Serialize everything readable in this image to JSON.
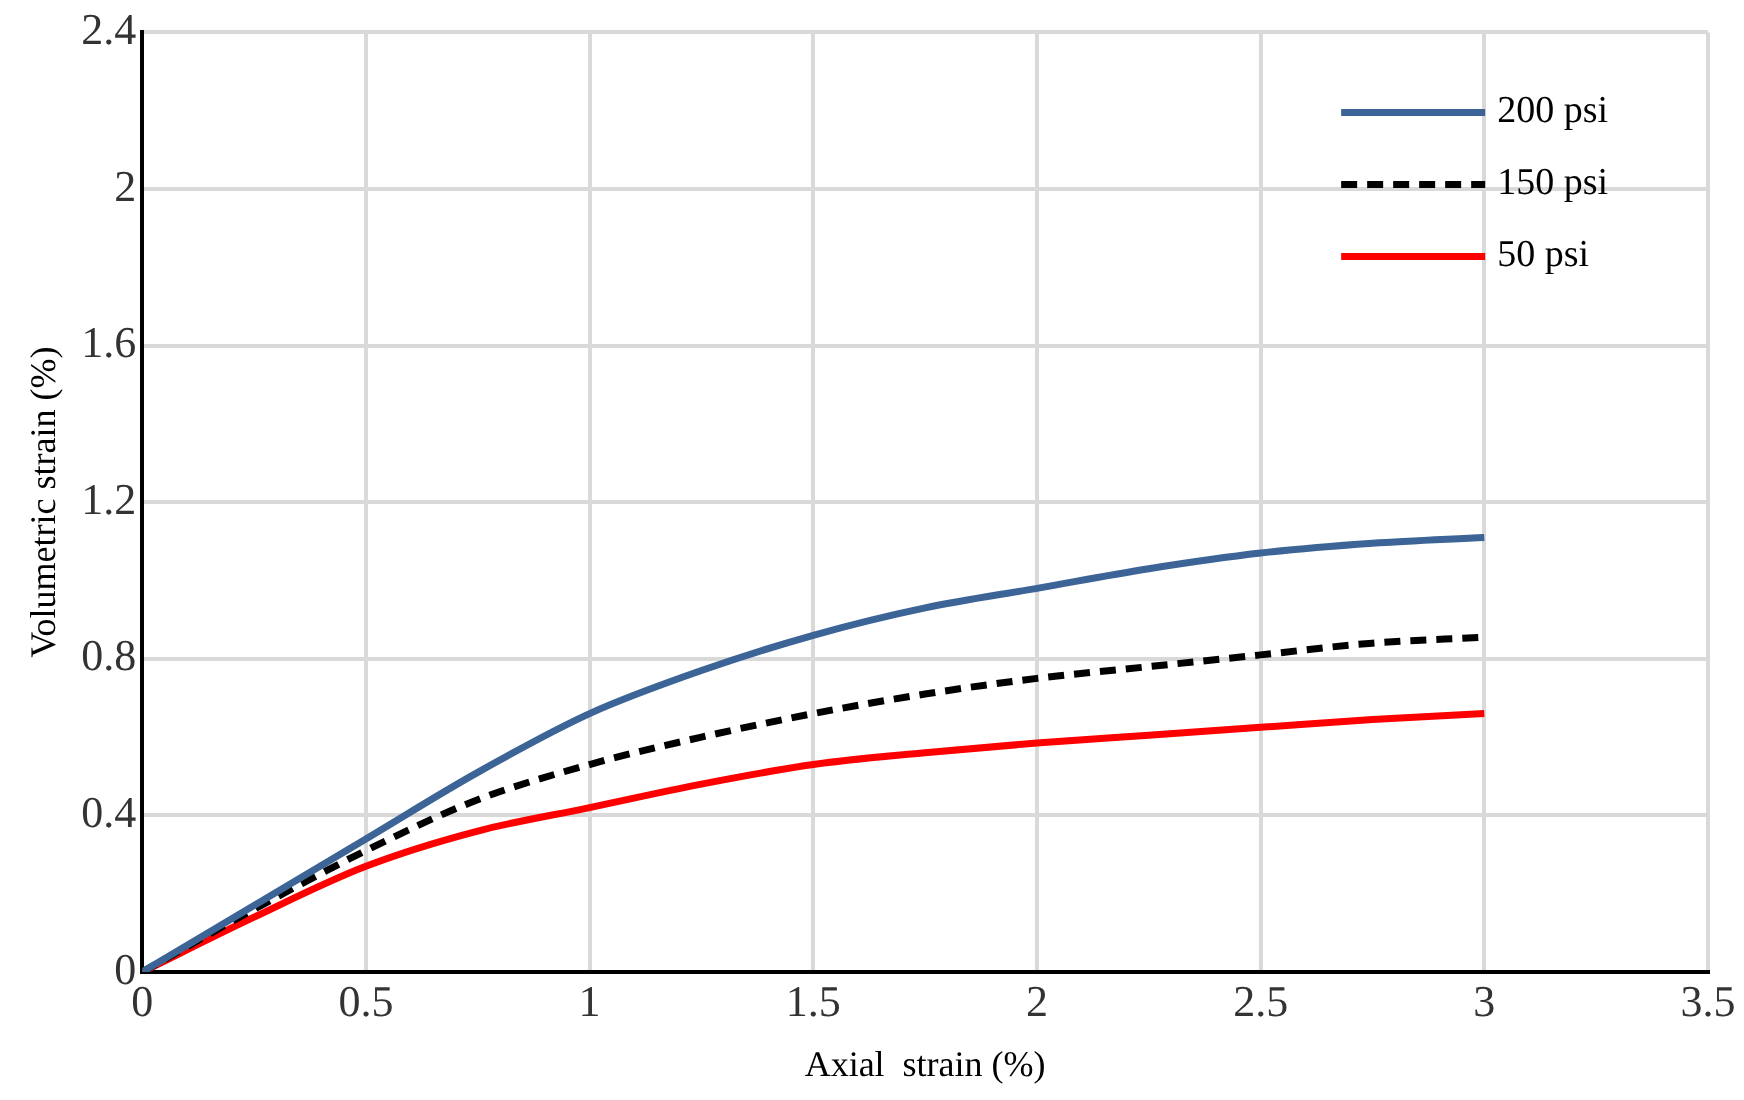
{
  "chart_data": {
    "type": "line",
    "xlabel": "Axial  strain (%)",
    "ylabel": "Volumetric strain (%)",
    "x": [
      0,
      0.25,
      0.5,
      0.75,
      1,
      1.25,
      1.5,
      1.75,
      2,
      2.25,
      2.5,
      2.75,
      3
    ],
    "series": [
      {
        "name": "200 psi",
        "color": "#3c6496",
        "line_style": "solid",
        "values": [
          0,
          0.17,
          0.34,
          0.51,
          0.66,
          0.77,
          0.86,
          0.93,
          0.98,
          1.03,
          1.07,
          1.095,
          1.11
        ]
      },
      {
        "name": "150 psi",
        "color": "#000000",
        "line_style": "dashed",
        "values": [
          0,
          0.16,
          0.31,
          0.44,
          0.53,
          0.6,
          0.66,
          0.71,
          0.75,
          0.78,
          0.81,
          0.84,
          0.855
        ]
      },
      {
        "name": "50 psi",
        "color": "#ff0000",
        "line_style": "solid",
        "values": [
          0,
          0.14,
          0.27,
          0.36,
          0.42,
          0.48,
          0.53,
          0.56,
          0.585,
          0.605,
          0.625,
          0.645,
          0.66
        ]
      }
    ],
    "xlim": [
      0,
      3.5
    ],
    "xticks": [
      0,
      0.5,
      1,
      1.5,
      2,
      2.5,
      3,
      3.5
    ],
    "ylim": [
      0,
      2.4
    ],
    "yticks": [
      0,
      {
        "value": 0.4,
        "label": "0.4"
      },
      {
        "value": 0.8,
        "label": "0.8"
      },
      {
        "value": 1.2,
        "label": "1.2"
      },
      {
        "value": 1.6,
        "label": "1.6"
      },
      2,
      {
        "value": 2.4,
        "label": "2.4"
      }
    ],
    "grid": true,
    "legend": "top right",
    "marker": "none"
  }
}
